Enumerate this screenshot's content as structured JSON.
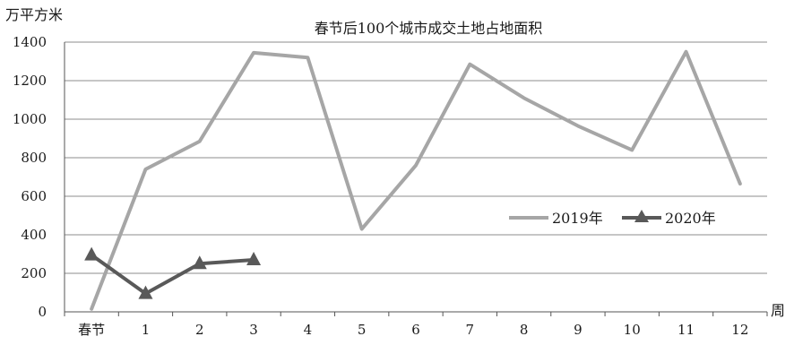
{
  "chart_data": {
    "type": "line",
    "title": "春节后100个城市成交土地占地面积",
    "ylabel": "万平方米",
    "xlabel": "周",
    "categories": [
      "春节",
      "1",
      "2",
      "3",
      "4",
      "5",
      "6",
      "7",
      "8",
      "9",
      "10",
      "11",
      "12"
    ],
    "ylim": [
      0,
      1400
    ],
    "yticks": [
      0,
      200,
      400,
      600,
      800,
      1000,
      1200,
      1400
    ],
    "grid": true,
    "legend_position": "right-middle",
    "series": [
      {
        "name": "2019年",
        "color": "#a6a6a6",
        "marker": "none",
        "values": [
          15,
          740,
          885,
          1345,
          1320,
          430,
          760,
          1285,
          1110,
          965,
          840,
          1350,
          665
        ]
      },
      {
        "name": "2020年",
        "color": "#595959",
        "marker": "triangle",
        "values": [
          295,
          95,
          250,
          270,
          null,
          null,
          null,
          null,
          null,
          null,
          null,
          null,
          null
        ]
      }
    ]
  }
}
